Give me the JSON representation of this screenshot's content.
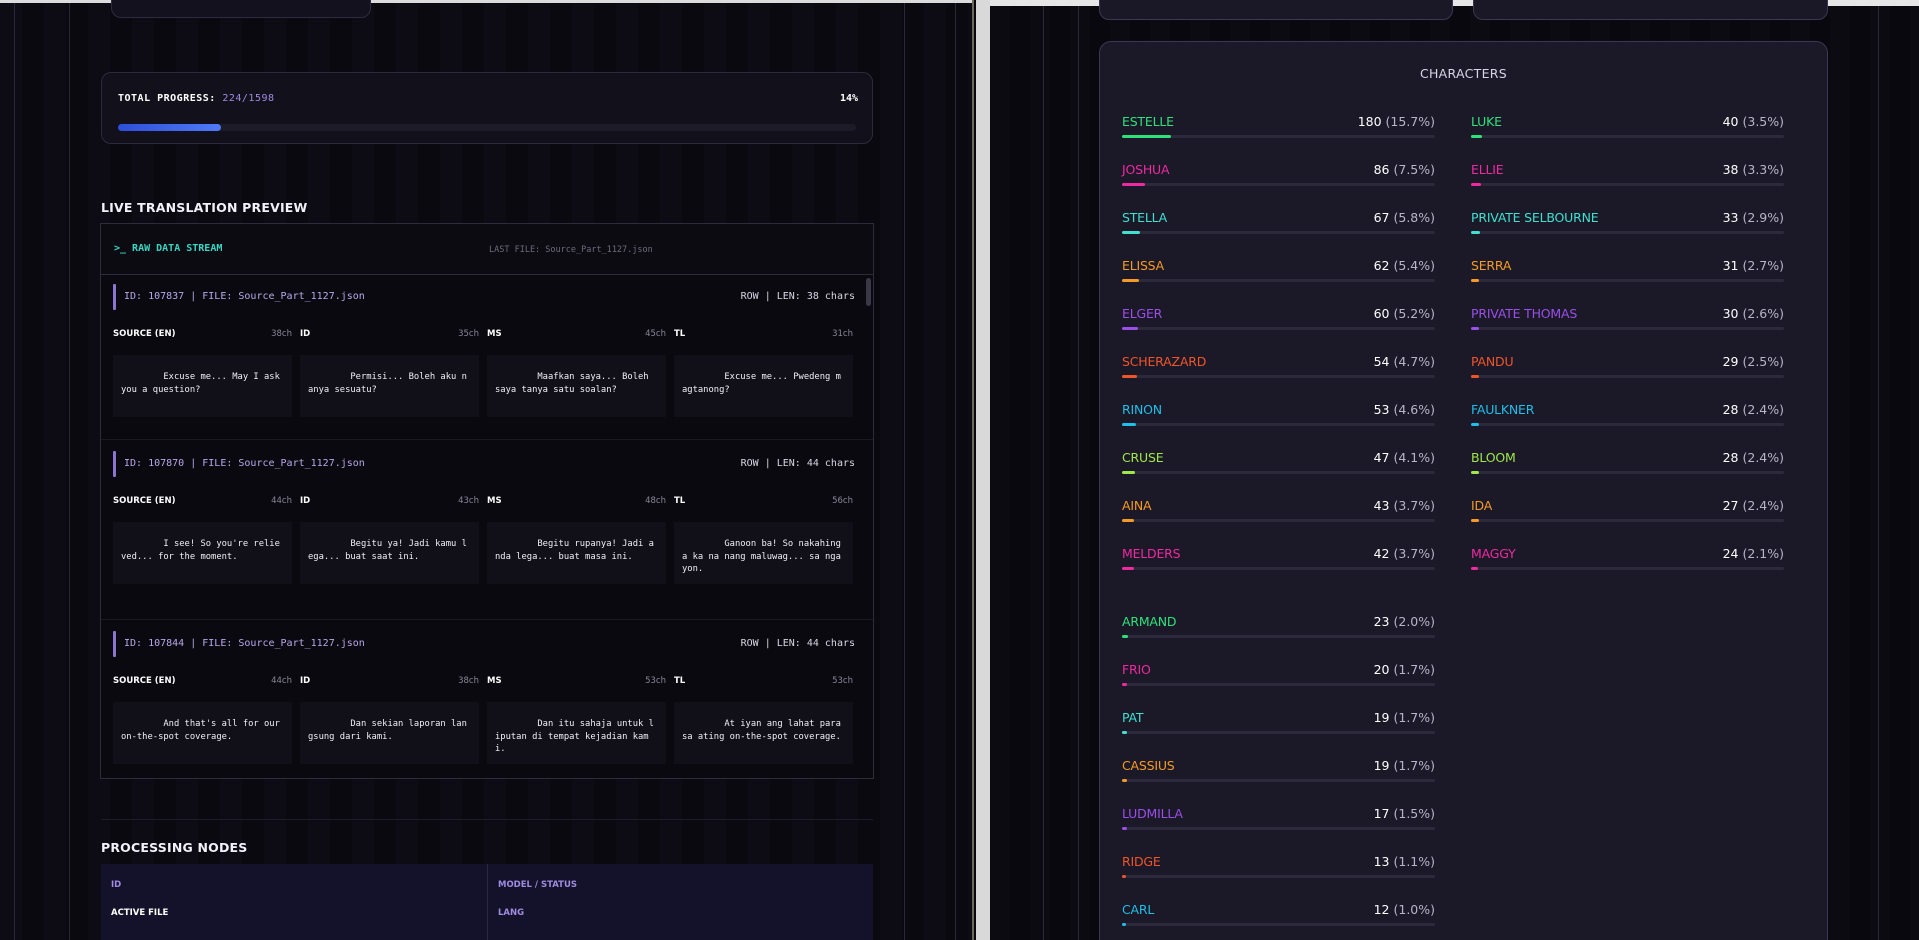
{
  "progress": {
    "label": "TOTAL PROGRESS:",
    "count": "224/1598",
    "percent_label": "14%",
    "fraction": 0.14,
    "fill_color": "#3b5ee8"
  },
  "preview": {
    "title": "LIVE TRANSLATION PREVIEW",
    "stream_title": ">_ RAW DATA STREAM",
    "last_file": "LAST FILE: Source_Part_1127.json",
    "records": [
      {
        "id_line": "ID: 107837 | FILE: Source_Part_1127.json",
        "meta": "ROW | LEN: 38 chars",
        "langs": [
          {
            "code": "SOURCE (EN)",
            "len": "38ch",
            "text": "        Excuse me... May I ask you a question?"
          },
          {
            "code": "ID",
            "len": "35ch",
            "text": "        Permisi... Boleh aku nanya sesuatu?"
          },
          {
            "code": "MS",
            "len": "45ch",
            "text": "        Maafkan saya... Boleh saya tanya satu soalan?"
          },
          {
            "code": "TL",
            "len": "31ch",
            "text": "        Excuse me... Pwedeng magtanong?"
          }
        ]
      },
      {
        "id_line": "ID: 107870 | FILE: Source_Part_1127.json",
        "meta": "ROW | LEN: 44 chars",
        "langs": [
          {
            "code": "SOURCE (EN)",
            "len": "44ch",
            "text": "        I see! So you're relieved... for the moment."
          },
          {
            "code": "ID",
            "len": "43ch",
            "text": "        Begitu ya! Jadi kamu lega... buat saat ini."
          },
          {
            "code": "MS",
            "len": "48ch",
            "text": "        Begitu rupanya! Jadi anda lega... buat masa ini."
          },
          {
            "code": "TL",
            "len": "56ch",
            "text": "        Ganoon ba! So nakahinga ka na nang maluwag... sa ngayon."
          }
        ]
      },
      {
        "id_line": "ID: 107844 | FILE: Source_Part_1127.json",
        "meta": "ROW | LEN: 44 chars",
        "langs": [
          {
            "code": "SOURCE (EN)",
            "len": "44ch",
            "text": "        And that's all for our on-the-spot coverage."
          },
          {
            "code": "ID",
            "len": "38ch",
            "text": "        Dan sekian laporan langsung dari kami."
          },
          {
            "code": "MS",
            "len": "53ch",
            "text": "        Dan itu sahaja untuk liputan di tempat kejadian kami."
          },
          {
            "code": "TL",
            "len": "53ch",
            "text": "        At iyan ang lahat para sa ating on-the-spot coverage."
          }
        ]
      }
    ]
  },
  "nodes": {
    "title": "PROCESSING NODES",
    "headers": [
      "ID",
      "MODEL / STATUS"
    ],
    "cells": [
      "ACTIVE FILE",
      "LANG"
    ]
  },
  "characters": {
    "title": "CHARACTERS",
    "items": [
      {
        "name": "ESTELLE",
        "count": "180",
        "pct": "(15.7%)",
        "share": 0.157,
        "color": "#2ee27a"
      },
      {
        "name": "JOSHUA",
        "count": "86",
        "pct": "(7.5%)",
        "share": 0.075,
        "color": "#ee2aa0"
      },
      {
        "name": "STELLA",
        "count": "67",
        "pct": "(5.8%)",
        "share": 0.058,
        "color": "#3fe0d0"
      },
      {
        "name": "ELISSA",
        "count": "62",
        "pct": "(5.4%)",
        "share": 0.054,
        "color": "#f59a24"
      },
      {
        "name": "ELGER",
        "count": "60",
        "pct": "(5.2%)",
        "share": 0.052,
        "color": "#9a4fe8"
      },
      {
        "name": "SCHERAZARD",
        "count": "54",
        "pct": "(4.7%)",
        "share": 0.047,
        "color": "#f0552a"
      },
      {
        "name": "RINON",
        "count": "53",
        "pct": "(4.6%)",
        "share": 0.046,
        "color": "#1fbfe8"
      },
      {
        "name": "CRUSE",
        "count": "47",
        "pct": "(4.1%)",
        "share": 0.041,
        "color": "#9fe84a"
      },
      {
        "name": "AINA",
        "count": "43",
        "pct": "(3.7%)",
        "share": 0.037,
        "color": "#f59a24"
      },
      {
        "name": "MELDERS",
        "count": "42",
        "pct": "(3.7%)",
        "share": 0.037,
        "color": "#ee2aa0"
      },
      {
        "name": "LUKE",
        "count": "40",
        "pct": "(3.5%)",
        "share": 0.035,
        "color": "#2ee27a"
      },
      {
        "name": "ELLIE",
        "count": "38",
        "pct": "(3.3%)",
        "share": 0.033,
        "color": "#ee2aa0"
      },
      {
        "name": "PRIVATE SELBOURNE",
        "count": "33",
        "pct": "(2.9%)",
        "share": 0.029,
        "color": "#3fe0d0"
      },
      {
        "name": "SERRA",
        "count": "31",
        "pct": "(2.7%)",
        "share": 0.027,
        "color": "#f59a24"
      },
      {
        "name": "PRIVATE THOMAS",
        "count": "30",
        "pct": "(2.6%)",
        "share": 0.026,
        "color": "#9a4fe8"
      },
      {
        "name": "PANDU",
        "count": "29",
        "pct": "(2.5%)",
        "share": 0.025,
        "color": "#f0552a"
      },
      {
        "name": "FAULKNER",
        "count": "28",
        "pct": "(2.4%)",
        "share": 0.024,
        "color": "#1fbfe8"
      },
      {
        "name": "BLOOM",
        "count": "28",
        "pct": "(2.4%)",
        "share": 0.024,
        "color": "#9fe84a"
      },
      {
        "name": "IDA",
        "count": "27",
        "pct": "(2.4%)",
        "share": 0.024,
        "color": "#f59a24"
      },
      {
        "name": "MAGGY",
        "count": "24",
        "pct": "(2.1%)",
        "share": 0.021,
        "color": "#ee2aa0"
      },
      {
        "name": "ARMAND",
        "count": "23",
        "pct": "(2.0%)",
        "share": 0.02,
        "color": "#2ee27a"
      },
      {
        "name": "FRIO",
        "count": "20",
        "pct": "(1.7%)",
        "share": 0.017,
        "color": "#ee2aa0"
      },
      {
        "name": "PAT",
        "count": "19",
        "pct": "(1.7%)",
        "share": 0.017,
        "color": "#3fe0d0"
      },
      {
        "name": "CASSIUS",
        "count": "19",
        "pct": "(1.7%)",
        "share": 0.017,
        "color": "#f59a24"
      },
      {
        "name": "LUDMILLA",
        "count": "17",
        "pct": "(1.5%)",
        "share": 0.015,
        "color": "#9a4fe8"
      },
      {
        "name": "RIDGE",
        "count": "13",
        "pct": "(1.1%)",
        "share": 0.011,
        "color": "#f0552a"
      },
      {
        "name": "CARL",
        "count": "12",
        "pct": "(1.0%)",
        "share": 0.01,
        "color": "#1fbfe8"
      }
    ]
  }
}
